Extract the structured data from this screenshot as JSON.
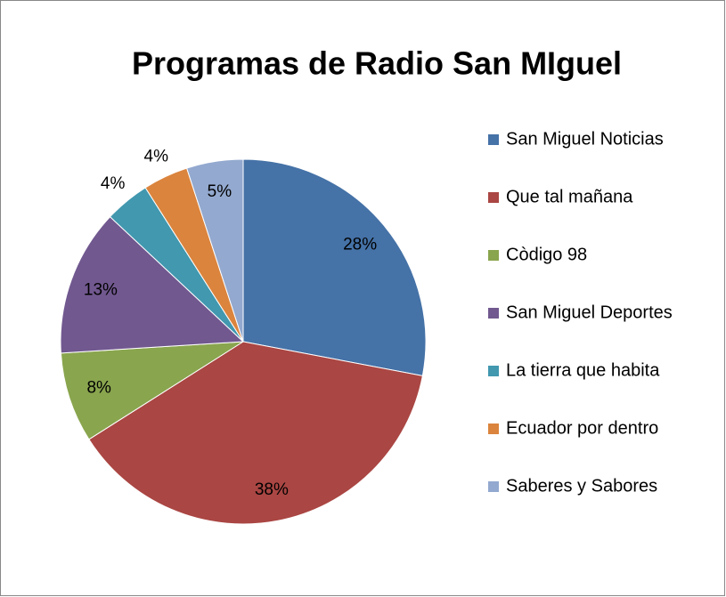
{
  "chart_data": {
    "type": "pie",
    "title": "Programas de Radio San MIguel",
    "categories": [
      "San Miguel Noticias",
      "Que tal mañana",
      "Còdigo 98",
      "San Miguel Deportes",
      "La tierra que habita",
      "Ecuador por dentro",
      "Saberes y Sabores"
    ],
    "values": [
      28,
      38,
      8,
      13,
      4,
      4,
      5
    ],
    "value_labels": [
      "28%",
      "38%",
      "8%",
      "13%",
      "4%",
      "4%",
      "5%"
    ],
    "colors": [
      "#4572a7",
      "#aa4643",
      "#89a54e",
      "#71588f",
      "#4198af",
      "#db843d",
      "#93a9cf"
    ],
    "legend": "right"
  }
}
